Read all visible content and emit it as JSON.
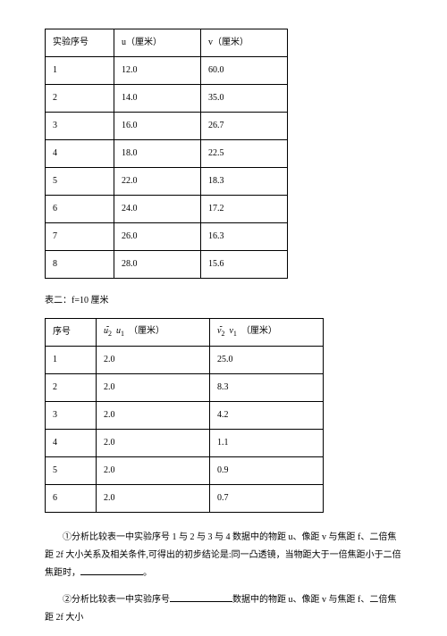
{
  "table1": {
    "headers": [
      "实验序号",
      "u（厘米）",
      "v（厘米）"
    ],
    "rows": [
      [
        "1",
        "12.0",
        "60.0"
      ],
      [
        "2",
        "14.0",
        "35.0"
      ],
      [
        "3",
        "16.0",
        "26.7"
      ],
      [
        "4",
        "18.0",
        "22.5"
      ],
      [
        "5",
        "22.0",
        "18.3"
      ],
      [
        "6",
        "24.0",
        "17.2"
      ],
      [
        "7",
        "26.0",
        "16.3"
      ],
      [
        "8",
        "28.0",
        "15.6"
      ]
    ]
  },
  "caption2": "表二：f=10 厘米",
  "table2": {
    "header_col1": "序号",
    "header_col2_suffix": "（厘米）",
    "header_col3_suffix": "（厘米）",
    "rows": [
      [
        "1",
        "2.0",
        "25.0"
      ],
      [
        "2",
        "2.0",
        "8.3"
      ],
      [
        "3",
        "2.0",
        "4.2"
      ],
      [
        "4",
        "2.0",
        "1.1"
      ],
      [
        "5",
        "2.0",
        "0.9"
      ],
      [
        "6",
        "2.0",
        "0.7"
      ]
    ]
  },
  "q1_a": "①分析比较表一中实验序号 1 与 2 与 3 与 4 数据中的物距 u、像距 v 与焦距 f、二倍焦距 2f 大小关系及相关条件,可得出的初步结论是:同一凸透镜，当物距大于一倍焦距小于二倍焦距时，",
  "q1_b": "。",
  "q2_a": "②分析比较表一中实验序号",
  "q2_b": "数据中的物距 u、像距 v 与焦距 f、二倍焦距 2f 大小"
}
